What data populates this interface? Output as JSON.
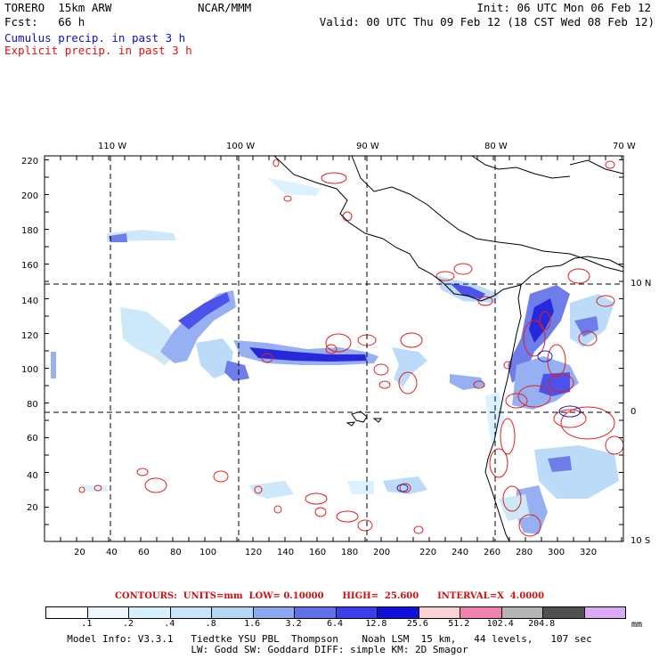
{
  "header": {
    "model": "TORERO  15km ARW",
    "org": "NCAR/MMM",
    "init": "Init: 06 UTC Mon 06 Feb 12",
    "fcst": "Fcst:   66 h",
    "valid": "Valid: 00 UTC Thu 09 Feb 12 (18 CST Wed 08 Feb 12)",
    "legend_cumulus": "Cumulus precip. in past 3 h",
    "legend_explicit": "Explicit precip. in past 3 h"
  },
  "map": {
    "lon_labels": [
      "110 W",
      "100 W",
      "90 W",
      "80 W",
      "70 W"
    ],
    "lat_labels": [
      "10 N",
      "0",
      "10 S"
    ],
    "x_ticks": [
      "20",
      "40",
      "60",
      "80",
      "100",
      "120",
      "140",
      "160",
      "180",
      "200",
      "220",
      "240",
      "260",
      "280",
      "300",
      "320"
    ],
    "y_ticks": [
      "20",
      "40",
      "60",
      "80",
      "100",
      "120",
      "140",
      "160",
      "180",
      "200",
      "220"
    ]
  },
  "contours": "CONTOURS:  UNITS=mm  LOW= 0.10000      HIGH=  25.600      INTERVAL=X  4.0000",
  "colorbar": {
    "labels": [
      ".1",
      ".2",
      ".4",
      ".8",
      "1.6",
      "3.2",
      "6.4",
      "12.8",
      "25.6",
      "51.2",
      "102.4",
      "204.8"
    ],
    "unit": "mm",
    "colors": [
      "#ffffff",
      "#eef7ff",
      "#d6f0ff",
      "#c8e6f8",
      "#b4d8f8",
      "#8ca8f0",
      "#6070e8",
      "#3a40e8",
      "#1010d8",
      "#fad2d2",
      "#f080b0",
      "#b4b4b4",
      "#505050",
      "#dcaaf8"
    ]
  },
  "footer": {
    "line1": "Model Info: V3.3.1   Tiedtke YSU PBL  Thompson    Noah LSM  15 km,   44 levels,   107 sec",
    "line2": "LW: Godd SW: Goddard DIFF: simple KM: 2D Smagor"
  }
}
